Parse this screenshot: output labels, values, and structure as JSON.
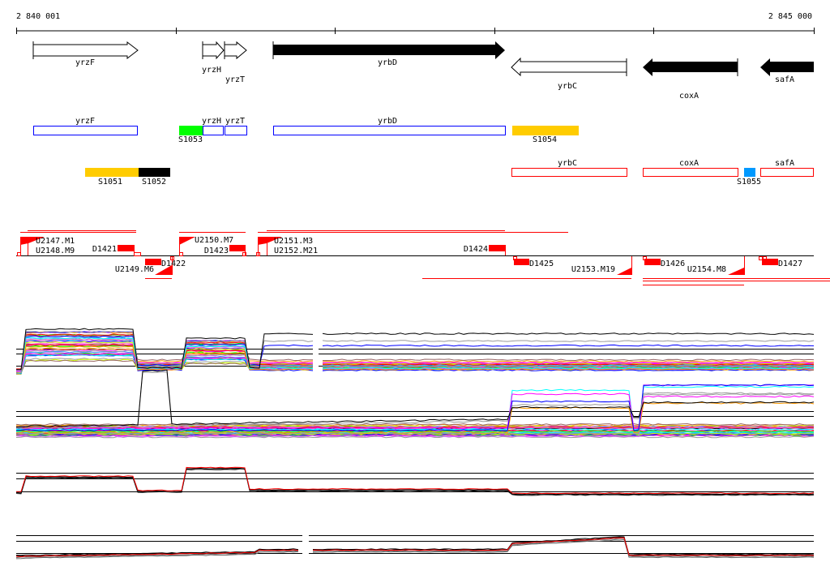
{
  "ruler": {
    "start_label": "2 840 001",
    "end_label": "2 845 000",
    "start": 2840001,
    "end": 2845000
  },
  "genes": [
    {
      "name": "yrzF",
      "strand": "+",
      "fill": "white"
    },
    {
      "name": "yrzH",
      "strand": "+",
      "fill": "white"
    },
    {
      "name": "yrzT",
      "strand": "+",
      "fill": "white"
    },
    {
      "name": "yrbD",
      "strand": "+",
      "fill": "black"
    },
    {
      "name": "yrbC",
      "strand": "-",
      "fill": "white"
    },
    {
      "name": "coxA",
      "strand": "-",
      "fill": "black"
    },
    {
      "name": "safA",
      "strand": "-",
      "fill": "black"
    }
  ],
  "annotation_forward": [
    {
      "name": "yrzF"
    },
    {
      "name": "yrzH"
    },
    {
      "name": "yrzT"
    },
    {
      "name": "yrbD"
    }
  ],
  "annotation_reverse": [
    {
      "name": "yrbC"
    },
    {
      "name": "coxA"
    },
    {
      "name": "safA"
    }
  ],
  "segments": [
    {
      "name": "S1051",
      "color": "#ffcc00"
    },
    {
      "name": "S1052",
      "color": "#000000"
    },
    {
      "name": "S1053",
      "color": "#00ff00"
    },
    {
      "name": "S1054",
      "color": "#ffcc00"
    },
    {
      "name": "S1055",
      "color": "#0099ff"
    }
  ],
  "transcripts": {
    "up": [
      "U2147.M1",
      "U2148.M9",
      "U2150.M7",
      "U2151.M3",
      "U2152.M21"
    ],
    "down": [
      "U2149.M6",
      "U2153.M19",
      "U2154.M8"
    ],
    "terminators": [
      "D1421",
      "D1422",
      "D1423",
      "D1424",
      "D1425",
      "D1426",
      "D1427"
    ]
  },
  "colors": {
    "forward": "#0000ff",
    "reverse": "#ff0000",
    "transcript": "#ff0000"
  }
}
